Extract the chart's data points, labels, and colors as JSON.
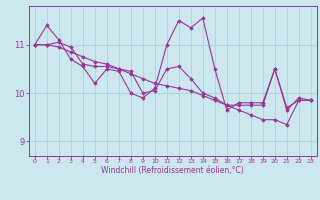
{
  "background_color": "#cce8ee",
  "grid_color": "#aad4dc",
  "line_color": "#993399",
  "marker_color": "#993399",
  "xlabel": "Windchill (Refroidissement éolien,°C)",
  "xlim": [
    -0.5,
    23.5
  ],
  "ylim": [
    8.7,
    11.8
  ],
  "yticks": [
    9,
    10,
    11
  ],
  "xticks": [
    0,
    1,
    2,
    3,
    4,
    5,
    6,
    7,
    8,
    9,
    10,
    11,
    12,
    13,
    14,
    15,
    16,
    17,
    18,
    19,
    20,
    21,
    22,
    23
  ],
  "series": [
    [
      11.0,
      11.4,
      11.1,
      10.7,
      10.55,
      10.2,
      10.5,
      10.45,
      10.0,
      9.9,
      10.1,
      11.0,
      11.5,
      11.35,
      11.55,
      10.5,
      9.65,
      9.8,
      9.8,
      9.8,
      10.5,
      9.65,
      9.9,
      9.85
    ],
    [
      11.0,
      11.0,
      11.05,
      10.95,
      10.6,
      10.55,
      10.55,
      10.5,
      10.45,
      10.0,
      10.05,
      10.5,
      10.55,
      10.3,
      10.0,
      9.9,
      9.75,
      9.75,
      9.75,
      9.75,
      10.5,
      9.7,
      9.85,
      9.85
    ],
    [
      11.0,
      11.0,
      10.95,
      10.85,
      10.75,
      10.65,
      10.6,
      10.5,
      10.4,
      10.3,
      10.2,
      10.15,
      10.1,
      10.05,
      9.95,
      9.85,
      9.75,
      9.65,
      9.55,
      9.45,
      9.45,
      9.35,
      9.85,
      9.85
    ]
  ]
}
